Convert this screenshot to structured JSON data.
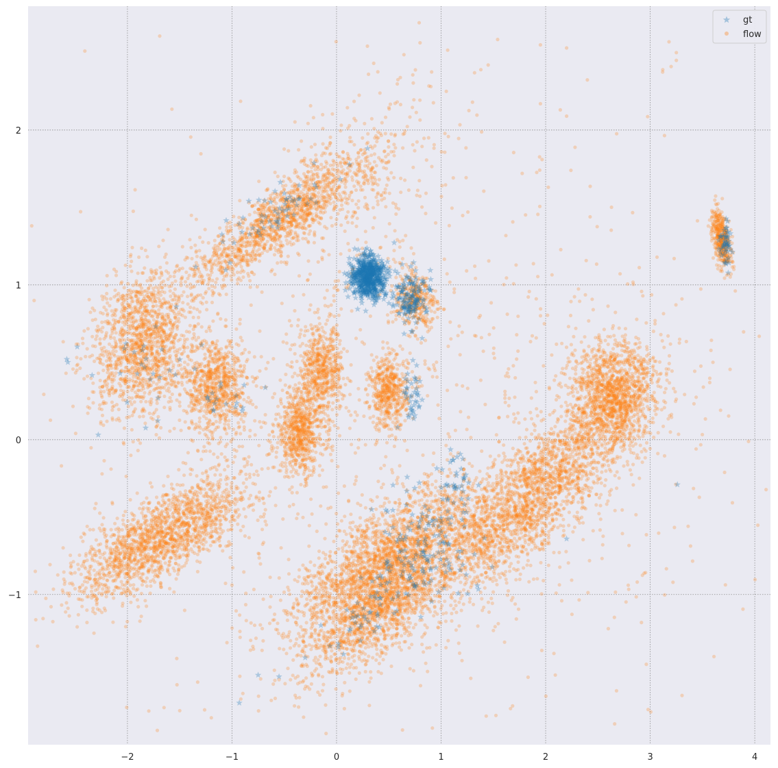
{
  "chart_data": {
    "type": "scatter",
    "title": "",
    "xlabel": "",
    "ylabel": "",
    "xlim": [
      -2.95,
      4.15
    ],
    "ylim": [
      -1.97,
      2.8
    ],
    "x_ticks": [
      -2,
      -1,
      0,
      1,
      2,
      3,
      4
    ],
    "y_ticks": [
      -1,
      0,
      1,
      2
    ],
    "x_tick_labels": [
      "−2",
      "−1",
      "0",
      "1",
      "2",
      "3",
      "4"
    ],
    "y_tick_labels": [
      "−1",
      "0",
      "1",
      "2"
    ],
    "grid": true,
    "legend": {
      "position": "top-right",
      "entries": [
        {
          "label": "gt",
          "marker": "star",
          "color": "#1f77b4"
        },
        {
          "label": "flow",
          "marker": "circle",
          "color": "#ff7f0e"
        }
      ]
    },
    "colors": {
      "background": "#eaeaf2",
      "grid": "#8c8c8c",
      "gt": "#1f77b4",
      "flow": "#ff7f0e"
    },
    "series": [
      {
        "name": "gt",
        "marker": "star",
        "alpha": 0.3,
        "clusters": [
          {
            "cx": 0.3,
            "cy": 1.05,
            "sx": 0.08,
            "sy": 0.07,
            "angle": 0,
            "n": 650
          },
          {
            "cx": 0.72,
            "cy": 0.92,
            "sx": 0.09,
            "sy": 0.09,
            "angle": -40,
            "n": 150
          },
          {
            "cx": 0.72,
            "cy": 0.3,
            "sx": 0.05,
            "sy": 0.1,
            "angle": 0,
            "n": 40
          },
          {
            "cx": 0.82,
            "cy": -0.7,
            "sx": 0.18,
            "sy": 0.25,
            "angle": 60,
            "n": 120
          },
          {
            "cx": 0.4,
            "cy": -1.05,
            "sx": 0.3,
            "sy": 0.1,
            "angle": 30,
            "n": 70
          },
          {
            "cx": 1.15,
            "cy": -0.3,
            "sx": 0.08,
            "sy": 0.12,
            "angle": 0,
            "n": 40
          },
          {
            "cx": 3.72,
            "cy": 1.25,
            "sx": 0.03,
            "sy": 0.08,
            "angle": 0,
            "n": 50
          },
          {
            "cx": -0.6,
            "cy": 1.45,
            "sx": 0.35,
            "sy": 0.08,
            "angle": 25,
            "n": 60
          },
          {
            "cx": -1.9,
            "cy": 0.5,
            "sx": 0.25,
            "sy": 0.2,
            "angle": 0,
            "n": 25
          },
          {
            "cx": -1.1,
            "cy": 0.3,
            "sx": 0.15,
            "sy": 0.15,
            "angle": 0,
            "n": 20
          }
        ],
        "points": [
          [
            -2.58,
            0.52
          ],
          [
            -2.57,
            0.5
          ],
          [
            -2.48,
            0.6
          ],
          [
            -0.93,
            -1.7
          ],
          [
            3.26,
            -0.29
          ],
          [
            -0.75,
            -1.52
          ],
          [
            -0.55,
            -1.53
          ],
          [
            2.2,
            -0.64
          ]
        ]
      },
      {
        "name": "flow",
        "marker": "circle",
        "alpha": 0.25,
        "clusters": [
          {
            "cx": -1.85,
            "cy": 0.62,
            "sx": 0.25,
            "sy": 0.22,
            "angle": 35,
            "n": 1400
          },
          {
            "cx": -1.15,
            "cy": 0.35,
            "sx": 0.15,
            "sy": 0.16,
            "angle": 0,
            "n": 800
          },
          {
            "cx": -0.35,
            "cy": 0.05,
            "sx": 0.12,
            "sy": 0.14,
            "angle": 0,
            "n": 700
          },
          {
            "cx": -0.15,
            "cy": 0.45,
            "sx": 0.11,
            "sy": 0.14,
            "angle": 0,
            "n": 600
          },
          {
            "cx": 0.5,
            "cy": 0.3,
            "sx": 0.09,
            "sy": 0.12,
            "angle": 0,
            "n": 500
          },
          {
            "cx": -0.55,
            "cy": 1.42,
            "sx": 0.5,
            "sy": 0.1,
            "angle": 25,
            "n": 1400
          },
          {
            "cx": 0.75,
            "cy": 0.9,
            "sx": 0.11,
            "sy": 0.09,
            "angle": -45,
            "n": 350
          },
          {
            "cx": -1.65,
            "cy": -0.62,
            "sx": 0.45,
            "sy": 0.13,
            "angle": 22,
            "n": 1800
          },
          {
            "cx": 0.45,
            "cy": -0.78,
            "sx": 0.5,
            "sy": 0.15,
            "angle": 25,
            "n": 2000
          },
          {
            "cx": 0.45,
            "cy": -1.08,
            "sx": 0.4,
            "sy": 0.13,
            "angle": 30,
            "n": 1200
          },
          {
            "cx": 1.85,
            "cy": -0.38,
            "sx": 0.6,
            "sy": 0.17,
            "angle": 32,
            "n": 2400
          },
          {
            "cx": 2.65,
            "cy": 0.3,
            "sx": 0.2,
            "sy": 0.17,
            "angle": 20,
            "n": 1300
          },
          {
            "cx": 3.68,
            "cy": 1.3,
            "sx": 0.04,
            "sy": 0.1,
            "angle": 15,
            "n": 400
          },
          {
            "cx": 0.2,
            "cy": 1.65,
            "sx": 0.5,
            "sy": 0.3,
            "angle": 30,
            "n": 300
          },
          {
            "cx": 1.0,
            "cy": 0.1,
            "sx": 1.6,
            "sy": 0.9,
            "angle": 0,
            "n": 900
          }
        ],
        "points": [
          [
            1.95,
            2.55
          ],
          [
            2.2,
            2.53
          ],
          [
            3.18,
            2.57
          ],
          [
            3.25,
            2.5
          ],
          [
            3.25,
            2.45
          ],
          [
            3.2,
            2.41
          ],
          [
            3.12,
            2.39
          ],
          [
            1.95,
            2.17
          ],
          [
            2.14,
            2.13
          ],
          [
            2.2,
            2.09
          ],
          [
            1.45,
            2.42
          ],
          [
            1.38,
            2.39
          ],
          [
            1.32,
            2.37
          ],
          [
            1.05,
            2.25
          ],
          [
            1.3,
            2.18
          ],
          [
            -1.65,
            -1.73
          ],
          [
            -1.5,
            -1.75
          ],
          [
            -0.55,
            -1.55
          ],
          [
            3.8,
            1.1
          ],
          [
            3.6,
            0.5
          ]
        ]
      }
    ]
  }
}
